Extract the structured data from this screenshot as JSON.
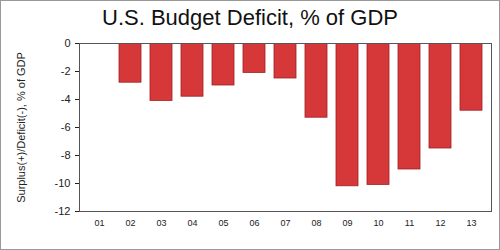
{
  "chart_data": {
    "type": "bar",
    "title": "U.S. Budget Deficit, % of GDP",
    "y_label": "Surplus(+)/Deficit(-), % of GDP",
    "categories": [
      "01",
      "02",
      "03",
      "04",
      "05",
      "06",
      "07",
      "08",
      "09",
      "10",
      "11",
      "12",
      "13"
    ],
    "values": [
      null,
      -2.8,
      -4.1,
      -3.8,
      -3.0,
      -2.1,
      -2.5,
      -5.3,
      -10.2,
      -10.1,
      -9.0,
      -7.5,
      -4.8
    ],
    "color": "#d6383a",
    "ylim": [
      -12,
      0
    ],
    "yticks": [
      -12,
      -10,
      -8,
      -6,
      -4,
      -2,
      0
    ],
    "grid": false
  }
}
